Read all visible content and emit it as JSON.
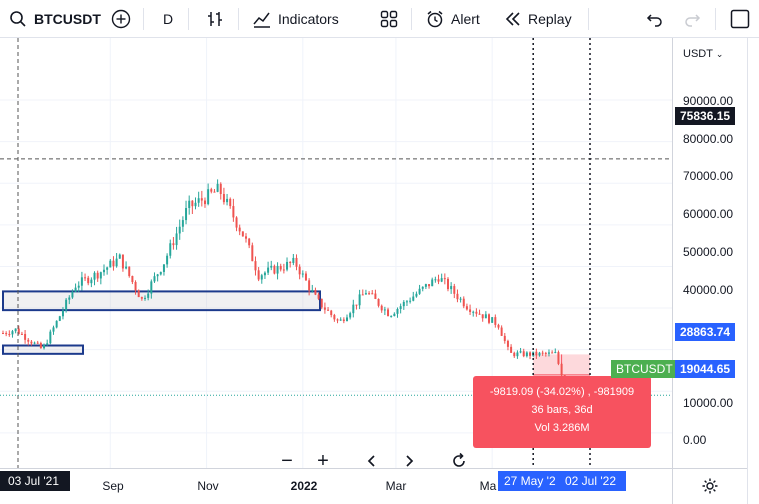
{
  "toolbar": {
    "symbol": "BTCUSDT",
    "interval": "D",
    "indicators_label": "Indicators",
    "alert_label": "Alert",
    "replay_label": "Replay"
  },
  "price_axis": {
    "currency": "USDT",
    "ticks": [
      "90000.00",
      "80000.00",
      "70000.00",
      "60000.00",
      "50000.00",
      "40000.00",
      "10000.00",
      "0.00"
    ],
    "crosshair_price": "75836.15",
    "range_high_price": "28863.74",
    "last_price": "19044.65",
    "symbol_badge": "BTCUSDT"
  },
  "time_axis": {
    "ticks": [
      "Sep",
      "Nov",
      "2022",
      "Mar",
      "Ma"
    ],
    "crosshair_date": "03 Jul '21",
    "range_start_date": "27 May '2",
    "range_end_date": "02 Jul '22"
  },
  "measure": {
    "line1": "-9819.09 (-34.02%) , -981909",
    "line2": "36 bars, 36d",
    "line3": "Vol 3.286M"
  },
  "chart_data": {
    "type": "candlestick",
    "symbol": "BTCUSDT",
    "x_range": [
      "2021-06",
      "2022-07"
    ],
    "ylim": [
      -5000,
      100000
    ],
    "close_series": [
      {
        "date": "2021-06-25",
        "close": 34000
      },
      {
        "date": "2021-07-03",
        "close": 34800
      },
      {
        "date": "2021-07-20",
        "close": 30000
      },
      {
        "date": "2021-08-10",
        "close": 45500
      },
      {
        "date": "2021-08-25",
        "close": 48500
      },
      {
        "date": "2021-09-07",
        "close": 52000
      },
      {
        "date": "2021-09-21",
        "close": 42000
      },
      {
        "date": "2021-10-05",
        "close": 51000
      },
      {
        "date": "2021-10-20",
        "close": 64000
      },
      {
        "date": "2021-11-09",
        "close": 68500
      },
      {
        "date": "2021-11-25",
        "close": 57000
      },
      {
        "date": "2021-12-04",
        "close": 48000
      },
      {
        "date": "2021-12-27",
        "close": 51000
      },
      {
        "date": "2022-01-10",
        "close": 41800
      },
      {
        "date": "2022-01-24",
        "close": 36500
      },
      {
        "date": "2022-02-10",
        "close": 44000
      },
      {
        "date": "2022-02-25",
        "close": 38500
      },
      {
        "date": "2022-03-28",
        "close": 47500
      },
      {
        "date": "2022-04-15",
        "close": 40500
      },
      {
        "date": "2022-05-05",
        "close": 36000
      },
      {
        "date": "2022-05-12",
        "close": 29000
      },
      {
        "date": "2022-05-27",
        "close": 28863.74
      },
      {
        "date": "2022-06-10",
        "close": 29000
      },
      {
        "date": "2022-06-18",
        "close": 19500
      },
      {
        "date": "2022-07-02",
        "close": 19044.65
      }
    ],
    "zones": [
      {
        "name": "zone-upper",
        "from": "2021-06",
        "to": "2022-01-20",
        "low": 39500,
        "high": 44000
      },
      {
        "name": "zone-lower",
        "from": "2021-06",
        "to": "2021-08-05",
        "low": 29000,
        "high": 31000
      }
    ],
    "measure_range": {
      "from": "2022-05-27",
      "to": "2022-07-02",
      "high": 28863.74,
      "low": 19044.65
    }
  }
}
